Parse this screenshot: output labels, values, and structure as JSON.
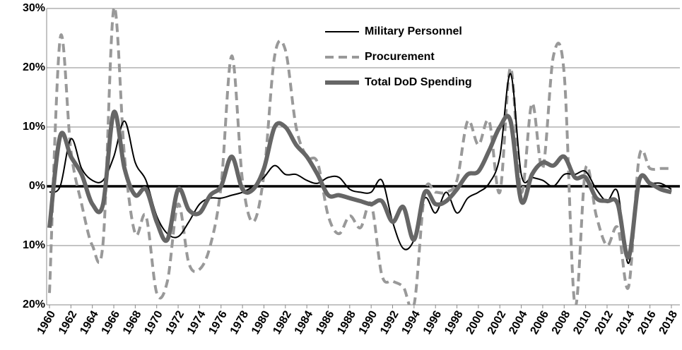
{
  "chart_data": {
    "type": "line",
    "x": [
      1960,
      1961,
      1962,
      1963,
      1964,
      1965,
      1966,
      1967,
      1968,
      1969,
      1970,
      1971,
      1972,
      1973,
      1974,
      1975,
      1976,
      1977,
      1978,
      1979,
      1980,
      1981,
      1982,
      1983,
      1984,
      1985,
      1986,
      1987,
      1988,
      1989,
      1990,
      1991,
      1992,
      1993,
      1994,
      1995,
      1996,
      1997,
      1998,
      1999,
      2000,
      2001,
      2002,
      2003,
      2004,
      2005,
      2006,
      2007,
      2008,
      2009,
      2010,
      2011,
      2012,
      2013,
      2014,
      2015,
      2016,
      2017,
      2018
    ],
    "xlim": [
      1960,
      2018
    ],
    "xticks": [
      1960,
      1962,
      1964,
      1966,
      1968,
      1970,
      1972,
      1974,
      1976,
      1978,
      1980,
      1982,
      1984,
      1986,
      1988,
      1990,
      1992,
      1994,
      1996,
      1998,
      2000,
      2002,
      2004,
      2006,
      2008,
      2010,
      2012,
      2014,
      2016,
      2018
    ],
    "ylim": [
      -20,
      30
    ],
    "yticks": [
      {
        "value": -20,
        "label": "20%"
      },
      {
        "value": -10,
        "label": "10%"
      },
      {
        "value": 0,
        "label": "0%"
      },
      {
        "value": 10,
        "label": "10%"
      },
      {
        "value": 20,
        "label": "20%"
      },
      {
        "value": 30,
        "label": "30%"
      }
    ],
    "grid": true,
    "legend": "upper center",
    "series": [
      {
        "name": "Military Personnel",
        "color": "#000000",
        "linestyle": "solid",
        "values": [
          -1,
          0,
          8,
          3,
          1,
          1,
          5,
          11,
          4,
          1,
          -5,
          -8,
          -8.5,
          -6,
          -3,
          -2,
          -2,
          -1.5,
          -1,
          0,
          1.5,
          3.5,
          2,
          2,
          1,
          0.5,
          1.5,
          1.5,
          -0.5,
          -1,
          -1,
          1,
          -6,
          -10.5,
          -9,
          -2,
          -4.5,
          -1,
          -4.5,
          -2,
          -1,
          0.5,
          5,
          19,
          2,
          1.5,
          1,
          0,
          2,
          2,
          2.5,
          -0.5,
          -2.5,
          -1,
          -13,
          1,
          0.5,
          0.5,
          -0.5
        ]
      },
      {
        "name": "Procurement",
        "color": "#999999",
        "linestyle": "dashed",
        "values": [
          -18,
          25,
          6,
          -3,
          -10,
          -9.5,
          30,
          5,
          -8,
          -5,
          -18,
          -16,
          -3,
          -13,
          -14,
          -10,
          0,
          22,
          1,
          -6,
          2,
          22,
          23,
          10,
          5,
          4,
          -5,
          -8,
          -5,
          -7,
          -3,
          -15,
          -16,
          -17,
          -20,
          -1,
          -1,
          -1,
          1,
          11,
          7,
          11,
          -1,
          20,
          -1,
          14,
          3,
          22,
          19,
          -20,
          3,
          -5,
          -10,
          -7,
          -17,
          5,
          3,
          3,
          3
        ]
      },
      {
        "name": "Total DoD Spending",
        "color": "#666666",
        "linestyle": "solid",
        "values": [
          -7,
          8.5,
          5,
          2,
          -3,
          -3,
          12.5,
          3,
          -1.5,
          -0.5,
          -6,
          -9,
          -0.5,
          -4,
          -4.5,
          -1.5,
          0,
          5,
          -0.5,
          -0.5,
          3,
          10,
          10,
          7,
          5,
          2,
          -1.5,
          -1.5,
          -2,
          -2.5,
          -3,
          -2.5,
          -6,
          -3.5,
          -9,
          -1,
          -3,
          -2.5,
          -0.5,
          2,
          2.5,
          6,
          10,
          11,
          -2.5,
          2,
          4,
          3.5,
          5,
          1.5,
          1.5,
          -2,
          -2.5,
          -3,
          -12,
          1,
          0.5,
          -0.5,
          -1
        ]
      }
    ]
  }
}
